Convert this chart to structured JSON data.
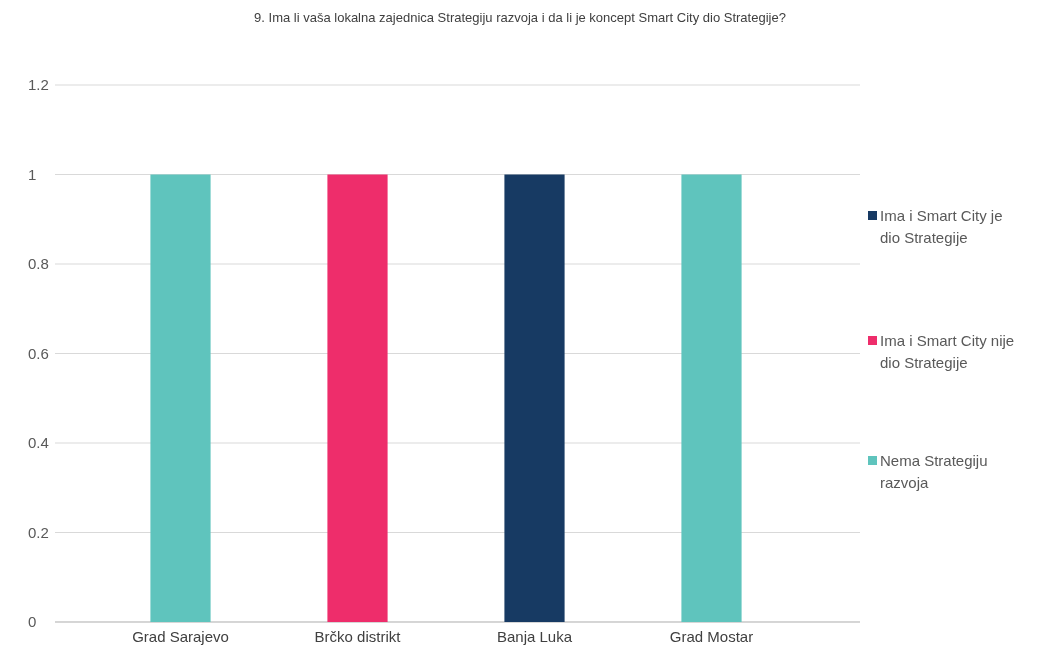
{
  "chart_data": {
    "type": "bar",
    "stacked": true,
    "title": "9. Ima li vaša lokalna zajednica Strategiju razvoja i da li je koncept Smart City dio Strategije?",
    "categories": [
      "Grad Sarajevo",
      "Brčko distrikt",
      "Banja Luka",
      "Grad Mostar"
    ],
    "series": [
      {
        "name": "Ima i Smart City je dio Strategije",
        "color": "#173a63",
        "values": [
          0,
          0,
          1,
          0
        ]
      },
      {
        "name": "Ima i Smart City nije dio Strategije",
        "color": "#ee2d6b",
        "values": [
          0,
          1,
          0,
          0
        ]
      },
      {
        "name": "Nema Strategiju razvoja",
        "color": "#5fc4bd",
        "values": [
          1,
          0,
          0,
          1
        ]
      }
    ],
    "ylim": [
      0,
      1.2
    ],
    "yticks": [
      0,
      0.2,
      0.4,
      0.6,
      0.8,
      1,
      1.2
    ],
    "grid": "y",
    "legend": "right"
  }
}
